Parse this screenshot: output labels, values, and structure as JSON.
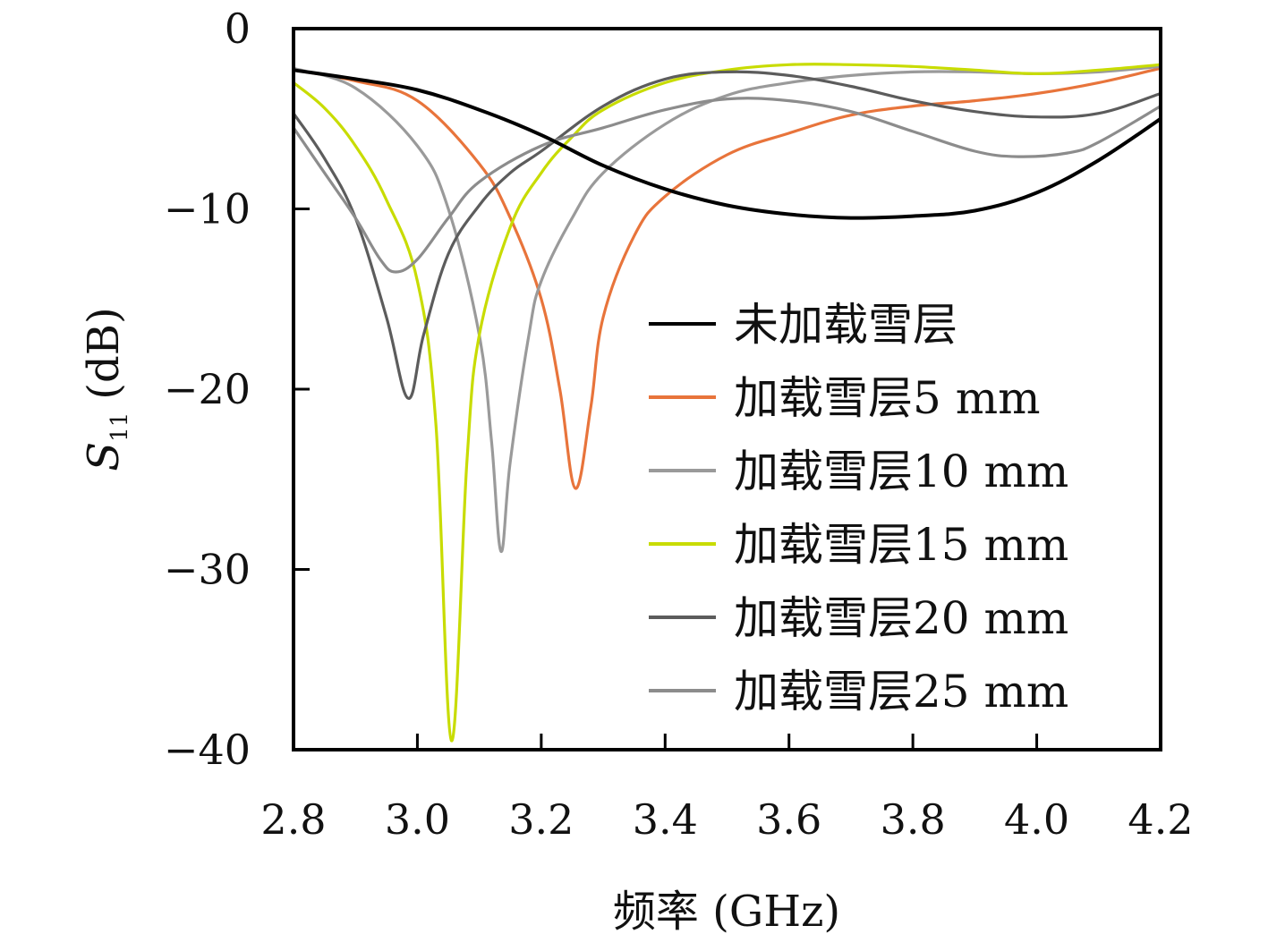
{
  "chart_data": {
    "type": "line",
    "title": "",
    "xlabel": "频率 (GHz)",
    "ylabel_main": "S",
    "ylabel_sub": "11",
    "ylabel_unit": "(dB)",
    "xlim": [
      2.8,
      4.2
    ],
    "ylim": [
      -40,
      0
    ],
    "xticks": [
      2.8,
      3.0,
      3.2,
      3.4,
      3.6,
      3.8,
      4.0,
      4.2
    ],
    "xtick_labels": [
      "2.8",
      "3.0",
      "3.2",
      "3.4",
      "3.6",
      "3.8",
      "4.0",
      "4.2"
    ],
    "yticks": [
      0,
      -10,
      -20,
      -30,
      -40
    ],
    "ytick_labels": [
      "0",
      "−10",
      "−20",
      "−30",
      "−40"
    ],
    "grid": false,
    "legend_position": "center-right",
    "series": [
      {
        "name": "未加载雪层",
        "color": "#000000",
        "x": [
          2.8,
          2.9,
          3.0,
          3.1,
          3.2,
          3.3,
          3.4,
          3.5,
          3.6,
          3.7,
          3.8,
          3.9,
          4.0,
          4.1,
          4.2
        ],
        "y": [
          -2.3,
          -2.8,
          -3.4,
          -4.5,
          -5.9,
          -7.6,
          -8.9,
          -9.8,
          -10.3,
          -10.5,
          -10.4,
          -10.1,
          -9.1,
          -7.3,
          -5.0
        ]
      },
      {
        "name": "加载雪层5 mm",
        "color": "#e8743b",
        "x": [
          2.8,
          2.9,
          3.0,
          3.1,
          3.15,
          3.2,
          3.23,
          3.255,
          3.28,
          3.3,
          3.35,
          3.4,
          3.5,
          3.6,
          3.7,
          3.8,
          3.9,
          4.0,
          4.1,
          4.2
        ],
        "y": [
          -2.3,
          -2.9,
          -4.0,
          -7.5,
          -10.5,
          -15.0,
          -20.0,
          -25.5,
          -21.0,
          -16.0,
          -11.5,
          -9.3,
          -7.0,
          -5.8,
          -4.8,
          -4.3,
          -4.0,
          -3.6,
          -3.0,
          -2.2
        ]
      },
      {
        "name": "加载雪层10 mm",
        "color": "#9a9a9a",
        "x": [
          2.8,
          2.9,
          3.0,
          3.05,
          3.1,
          3.12,
          3.135,
          3.15,
          3.18,
          3.2,
          3.25,
          3.3,
          3.4,
          3.5,
          3.6,
          3.7,
          3.8,
          3.9,
          4.0,
          4.1,
          4.2
        ],
        "y": [
          -2.2,
          -3.3,
          -6.5,
          -10.0,
          -17.0,
          -23.0,
          -29.0,
          -24.0,
          -17.0,
          -14.0,
          -10.5,
          -8.0,
          -5.3,
          -3.7,
          -3.0,
          -2.6,
          -2.4,
          -2.4,
          -2.5,
          -2.4,
          -2.1
        ]
      },
      {
        "name": "加载雪层15 mm",
        "color": "#c8dc00",
        "x": [
          2.8,
          2.85,
          2.9,
          2.95,
          3.0,
          3.03,
          3.055,
          3.08,
          3.1,
          3.15,
          3.2,
          3.25,
          3.3,
          3.4,
          3.5,
          3.6,
          3.7,
          3.8,
          3.9,
          4.0,
          4.1,
          4.2
        ],
        "y": [
          -3.0,
          -4.4,
          -6.5,
          -9.5,
          -14.0,
          -22.0,
          -39.5,
          -24.0,
          -17.0,
          -11.0,
          -8.0,
          -6.0,
          -4.5,
          -3.0,
          -2.3,
          -2.0,
          -2.0,
          -2.1,
          -2.3,
          -2.5,
          -2.3,
          -2.0
        ]
      },
      {
        "name": "加载雪层20 mm",
        "color": "#5c5c5c",
        "x": [
          2.8,
          2.85,
          2.9,
          2.95,
          2.985,
          3.01,
          3.05,
          3.1,
          3.15,
          3.2,
          3.3,
          3.4,
          3.5,
          3.6,
          3.7,
          3.8,
          3.9,
          4.0,
          4.1,
          4.2
        ],
        "y": [
          -4.7,
          -7.2,
          -10.5,
          -16.0,
          -20.5,
          -17.0,
          -12.5,
          -9.8,
          -8.0,
          -6.8,
          -4.3,
          -2.8,
          -2.4,
          -2.6,
          -3.2,
          -4.0,
          -4.6,
          -4.9,
          -4.7,
          -3.6
        ]
      },
      {
        "name": "加载雪层25 mm",
        "color": "#8c8c8c",
        "x": [
          2.8,
          2.85,
          2.9,
          2.94,
          2.965,
          3.0,
          3.05,
          3.1,
          3.2,
          3.3,
          3.4,
          3.5,
          3.6,
          3.7,
          3.8,
          3.9,
          3.97,
          4.05,
          4.1,
          4.2
        ],
        "y": [
          -5.5,
          -8.0,
          -10.5,
          -12.8,
          -13.5,
          -12.8,
          -10.5,
          -8.5,
          -6.5,
          -5.5,
          -4.5,
          -3.9,
          -4.0,
          -4.6,
          -5.7,
          -6.8,
          -7.1,
          -6.9,
          -6.3,
          -4.3
        ]
      }
    ]
  }
}
